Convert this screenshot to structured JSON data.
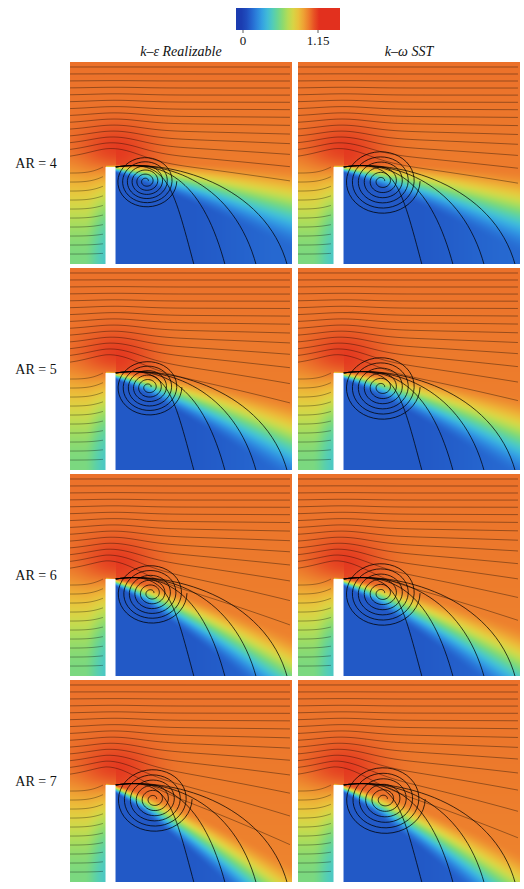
{
  "chart_data": {
    "type": "contour",
    "colorbar": {
      "range": [
        0,
        1.15
      ],
      "ticks": [
        0,
        1.15
      ]
    },
    "columns": [
      "k–ε Realizable",
      "k–ω SST"
    ],
    "rows": [
      "AR = 4",
      "AR = 5",
      "AR = 6",
      "AR = 7"
    ]
  }
}
